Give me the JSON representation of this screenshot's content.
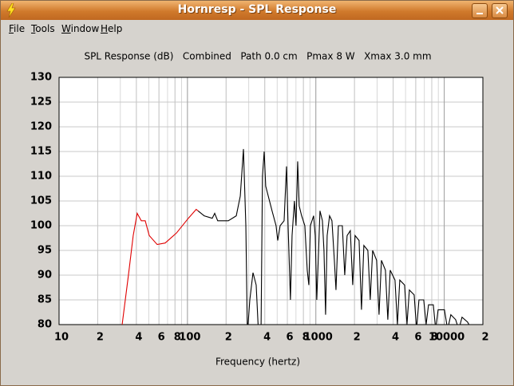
{
  "window": {
    "title": "Hornresp - SPL Response",
    "menu": [
      "File",
      "Tools",
      "Window",
      "Help"
    ]
  },
  "chart_data": {
    "type": "line",
    "title": "SPL Response (dB)   Combined   Path 0.0 cm   Pmax 8 W   Xmax 3.0 mm",
    "x_label": "Frequency (hertz)",
    "xscale": "log",
    "grid": true,
    "xlim": [
      10,
      20000
    ],
    "ylim": [
      80,
      130
    ],
    "xticks": [
      10,
      {
        "value": 20,
        "label": "2"
      },
      {
        "value": 40,
        "label": "4"
      },
      {
        "value": 60,
        "label": "6"
      },
      {
        "value": 80,
        "label": "8"
      },
      100,
      {
        "value": 200,
        "label": "2"
      },
      {
        "value": 400,
        "label": "4"
      },
      {
        "value": 600,
        "label": "6"
      },
      {
        "value": 800,
        "label": "8"
      },
      1000,
      {
        "value": 2000,
        "label": "2"
      },
      {
        "value": 4000,
        "label": "4"
      },
      {
        "value": 6000,
        "label": "6"
      },
      {
        "value": 8000,
        "label": "8"
      },
      10000,
      {
        "value": 20000,
        "label": "2"
      }
    ],
    "yticks": [
      80,
      85,
      90,
      95,
      100,
      105,
      110,
      115,
      120,
      125,
      130
    ],
    "series": [
      {
        "color": "#e00000",
        "x": [
          31,
          34.7,
          37.8,
          40.6,
          43.7,
          46.9,
          50.4,
          58.1,
          67.1,
          82,
          101.6,
          117,
          121
        ],
        "values": [
          80,
          90,
          98,
          102.5,
          101,
          101,
          98,
          96.2,
          96.5,
          98.5,
          101.5,
          103.3,
          103
        ]
      },
      {
        "color": "#000000",
        "x": [
          121,
          135,
          156,
          163,
          172,
          208,
          240,
          258,
          273,
          285,
          293,
          306,
          324,
          343,
          358,
          374,
          384,
          396,
          407,
          456,
          490,
          505,
          527,
          566,
          591,
          608,
          634,
          653,
          681,
          701,
          722,
          742,
          775,
          821,
          857,
          882,
          907,
          961,
          989,
          1017,
          1047,
          1077,
          1125,
          1157,
          1191,
          1225,
          1279,
          1335,
          1394,
          1435,
          1498,
          1608,
          1679,
          1752,
          1856,
          1937,
          2022,
          2172,
          2267,
          2366,
          2542,
          2653,
          2770,
          2975,
          3106,
          3243,
          3483,
          3636,
          3795,
          4136,
          4318,
          4507,
          4912,
          5128,
          5351,
          5833,
          6087,
          6355,
          6924,
          7226,
          7546,
          8222,
          8582,
          8960,
          10040,
          10630,
          11260,
          12270,
          12990,
          13760,
          15210,
          16340
        ],
        "values": [
          103,
          102,
          101.5,
          102.5,
          101,
          101,
          102,
          106,
          115.5,
          100,
          78,
          85,
          90.5,
          88,
          78,
          78,
          110,
          115,
          108,
          103,
          100,
          97,
          100,
          101,
          112,
          100,
          85,
          98,
          105,
          100,
          113,
          104,
          102,
          100,
          91,
          88,
          100,
          102,
          98,
          85,
          94,
          103,
          101,
          95,
          82,
          98,
          102,
          101,
          93,
          87,
          100,
          100,
          90,
          98,
          99,
          88,
          98,
          97,
          83,
          96,
          95,
          85,
          95,
          93,
          82,
          93,
          91,
          81,
          91,
          89,
          80,
          89,
          88,
          80,
          87,
          86,
          79,
          85,
          85,
          80,
          84,
          84,
          79,
          83,
          83,
          79,
          82,
          81,
          79,
          81.5,
          80.5,
          79
        ]
      }
    ]
  }
}
